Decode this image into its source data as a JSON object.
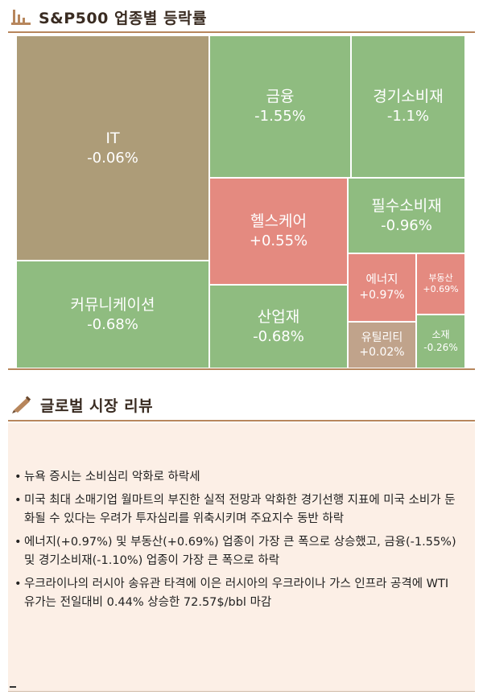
{
  "section1": {
    "title": "S&P500 업종별 등락률",
    "icon": "bar-chart-icon"
  },
  "section2": {
    "title": "글로벌 시장 리뷰",
    "icon": "pen-icon"
  },
  "colors": {
    "accent": "#b7865c",
    "negative": "#8fbc80",
    "positive": "#e48a80",
    "neutral": "#ad9c78",
    "small_positive": "#c0a38b",
    "review_bg": "#fcefe6"
  },
  "chart_data": {
    "type": "treemap",
    "title": "S&P500 업종별 등락률",
    "items": [
      {
        "name": "IT",
        "change": -0.06,
        "label": "-0.06%"
      },
      {
        "name": "금융",
        "change": -1.55,
        "label": "-1.55%"
      },
      {
        "name": "경기소비재",
        "change": -1.1,
        "label": "-1.1%"
      },
      {
        "name": "헬스케어",
        "change": 0.55,
        "label": "+0.55%"
      },
      {
        "name": "필수소비재",
        "change": -0.96,
        "label": "-0.96%"
      },
      {
        "name": "에너지",
        "change": 0.97,
        "label": "+0.97%"
      },
      {
        "name": "부동산",
        "change": 0.69,
        "label": "+0.69%"
      },
      {
        "name": "커뮤니케이션",
        "change": -0.68,
        "label": "-0.68%"
      },
      {
        "name": "산업재",
        "change": -0.68,
        "label": "-0.68%"
      },
      {
        "name": "유틸리티",
        "change": 0.02,
        "label": "+0.02%"
      },
      {
        "name": "소재",
        "change": -0.26,
        "label": "-0.26%"
      }
    ]
  },
  "review": {
    "items": [
      "뉴욕 증시는 소비심리 악화로 하락세",
      "미국 최대 소매기업 월마트의 부진한 실적 전망과 악화한 경기선행 지표에 미국 소비가 둔화될 수 있다는 우려가 투자심리를 위축시키며 주요지수 동반 하락",
      "에너지(+0.97%) 및 부동산(+0.69%) 업종이 가장 큰 폭으로 상승했고, 금융(-1.55%) 및 경기소비재(-1.10%) 업종이 가장 큰 폭으로 하락",
      "우크라이나의 러시아 송유관 타격에 이은 러시아의 우크라이나 가스 인프라 공격에 WTI 유가는 전일대비 0.44% 상승한 72.57$/bbl 마감"
    ]
  }
}
